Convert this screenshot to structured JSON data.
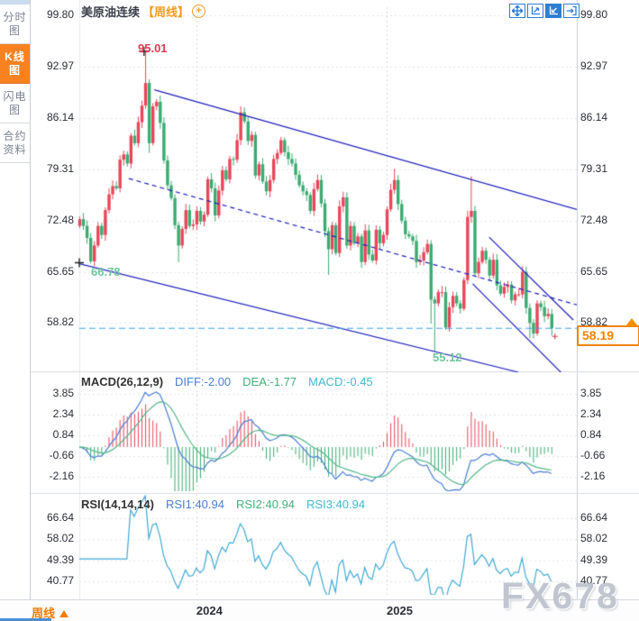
{
  "window": {
    "watermark": "FX678"
  },
  "sidebar": {
    "items": [
      {
        "label": "分时图",
        "active": false
      },
      {
        "label": "K线图",
        "active": true
      },
      {
        "label": "闪电图",
        "active": false
      },
      {
        "label": "合约资料",
        "active": false
      }
    ]
  },
  "header": {
    "title": "美原油连续",
    "timeframe": "【周线】"
  },
  "toolbar": {
    "icons": [
      "pan-tool",
      "scale-axis",
      "scale-axis-active",
      "exit-chart"
    ]
  },
  "main_chart": {
    "left_axis_labels": [
      "99.80",
      "92.97",
      "86.14",
      "79.31",
      "72.48",
      "65.65",
      "58.82"
    ],
    "right_axis_labels": [
      "99.80",
      "92.97",
      "86.14",
      "79.31",
      "72.48",
      "65.65",
      "58.82"
    ],
    "high_annotation": "95.01",
    "trendline_anchor_annotation": "66.78",
    "low_annotation": "55.12",
    "last_price_box": "58.19"
  },
  "macd_panel": {
    "title": "MACD(26,12,9)",
    "diff_label": "DIFF:-2.00",
    "dea_label": "DEA:-1.77",
    "macd_label": "MACD:-0.45",
    "axis_labels": [
      "3.85",
      "2.34",
      "0.84",
      "-0.66",
      "-2.16"
    ]
  },
  "rsi_panel": {
    "title": "RSI(14,14,14)",
    "rsi1_label": "RSI1:40.94",
    "rsi2_label": "RSI2:40.94",
    "rsi3_label": "RSI3:40.94",
    "axis_labels": [
      "66.64",
      "58.02",
      "49.39",
      "40.77"
    ]
  },
  "bottom_bar": {
    "period_label": "周线",
    "year_labels": [
      {
        "label": "2024",
        "week": 32
      },
      {
        "label": "2025",
        "week": 84
      }
    ]
  },
  "colors": {
    "up_candle": "#e8465a",
    "down_candle": "#3bab71",
    "trend_blue": "#1d1dbd",
    "price_dash": "#3aa0e8",
    "accent_orange": "#f57c00",
    "diff_line": "#4a7fd4",
    "dea_line": "#52b788",
    "rsi_line": "#3fa9d6",
    "annotation_red": "#e13b52",
    "annotation_green": "#6ec79c",
    "sidebar_active": "#f8821f",
    "toolbar_blue": "#2e7fd2",
    "hot_icon_red": "#e02020",
    "grid": "#e2e4e9",
    "year_grid": "#d9d9d9",
    "axis_line": "#c9cdd6",
    "separator": "#d9dce3"
  },
  "chart_data": {
    "type": "candlestick",
    "symbol": "美原油连续",
    "timeframe": "weekly (周线)",
    "price_axis": {
      "labels": [
        99.8,
        92.97,
        86.14,
        79.31,
        72.48,
        65.65,
        58.82
      ]
    },
    "x_axis": {
      "year_ticks": [
        {
          "label": "2024",
          "week": 32
        },
        {
          "label": "2025",
          "week": 84
        }
      ]
    },
    "closes": [
      72.7,
      71.8,
      70.2,
      67.1,
      69.2,
      71.8,
      70.6,
      73.9,
      76.0,
      77.1,
      76.8,
      80.6,
      81.3,
      80.1,
      83.8,
      82.8,
      85.6,
      87.8,
      90.8,
      82.8,
      87.7,
      88.3,
      85.5,
      80.5,
      77.2,
      75.5,
      71.9,
      69.2,
      71.4,
      73.9,
      71.8,
      72.0,
      73.8,
      72.4,
      73.3,
      78.0,
      76.8,
      73.2,
      76.5,
      79.2,
      78.0,
      80.7,
      80.6,
      83.2,
      86.9,
      85.7,
      83.1,
      83.9,
      78.5,
      80.0,
      77.7,
      76.4,
      77.9,
      80.7,
      81.5,
      83.2,
      81.6,
      80.7,
      80.1,
      78.6,
      77.2,
      76.4,
      75.9,
      73.8,
      76.7,
      77.9,
      74.8,
      71.1,
      68.7,
      71.9,
      68.2,
      74.4,
      75.6,
      69.2,
      71.8,
      69.5,
      70.4,
      67.0,
      71.2,
      68.0,
      67.2,
      71.3,
      69.5,
      70.6,
      74.0,
      76.6,
      77.9,
      74.7,
      72.5,
      70.7,
      70.4,
      69.8,
      67.0,
      67.2,
      68.3,
      69.4,
      62.0,
      61.5,
      63.0,
      63.0,
      58.3,
      61.0,
      62.5,
      61.5,
      60.8,
      64.6,
      73.0,
      73.8,
      65.5,
      67.0,
      68.5,
      67.3,
      65.2,
      67.3,
      63.9,
      62.8,
      63.7,
      64.0,
      61.9,
      62.7,
      62.7,
      65.7,
      60.9,
      58.9,
      57.5,
      61.5,
      61.0,
      59.8,
      60.1,
      58.19
    ],
    "wick_overrides": {
      "3": {
        "low": 66.8
      },
      "18": {
        "high": 95.01
      },
      "19": {
        "low": 81.5
      },
      "27": {
        "low": 67.0
      },
      "44": {
        "high": 87.7
      },
      "68": {
        "low": 65.3
      },
      "86": {
        "high": 79.4
      },
      "96": {
        "low": 58.8
      },
      "97": {
        "low": 55.12
      },
      "107": {
        "high": 78.4
      },
      "123": {
        "low": 56.9
      },
      "129": {
        "low": 57.2
      }
    },
    "markers": {
      "high": {
        "week": 17.7,
        "price": 95.01,
        "label": "95.01"
      },
      "anchor": {
        "week": 0,
        "price": 66.9,
        "label": "66.78"
      },
      "low": {
        "week": 97,
        "price": 55.12,
        "label": "55.12"
      },
      "last_price": 58.19
    },
    "trendlines": [
      {
        "name": "lower-channel-line",
        "style": "solid",
        "from": {
          "week": 0,
          "price": 66.78
        },
        "to": {
          "week": 120,
          "price": 52.35
        }
      },
      {
        "name": "upper-channel-line",
        "style": "solid",
        "from": {
          "week": 20.5,
          "price": 89.9
        },
        "to": {
          "week": 136,
          "price": 74.0
        }
      },
      {
        "name": "channel-median-line",
        "style": "dashed",
        "from": {
          "week": 13.5,
          "price": 78.1
        },
        "to": {
          "week": 136,
          "price": 61.3
        }
      },
      {
        "name": "steep-channel-upper",
        "style": "solid",
        "from": {
          "week": 112,
          "price": 70.3
        },
        "to": {
          "week": 135,
          "price": 59.3
        }
      },
      {
        "name": "steep-channel-lower",
        "style": "solid",
        "from": {
          "week": 107.5,
          "price": 64.1
        },
        "to": {
          "week": 132.5,
          "price": 51.9
        }
      }
    ],
    "indicators": {
      "macd": {
        "params": [
          26,
          12,
          9
        ],
        "diff": -2.0,
        "dea": -1.77,
        "macd": -0.45,
        "axis": [
          3.85,
          2.34,
          0.84,
          -0.66,
          -2.16
        ]
      },
      "rsi": {
        "params": [
          14,
          14,
          14
        ],
        "rsi1": 40.94,
        "rsi2": 40.94,
        "rsi3": 40.94,
        "axis": [
          66.64,
          58.02,
          49.39,
          40.77
        ]
      }
    }
  }
}
